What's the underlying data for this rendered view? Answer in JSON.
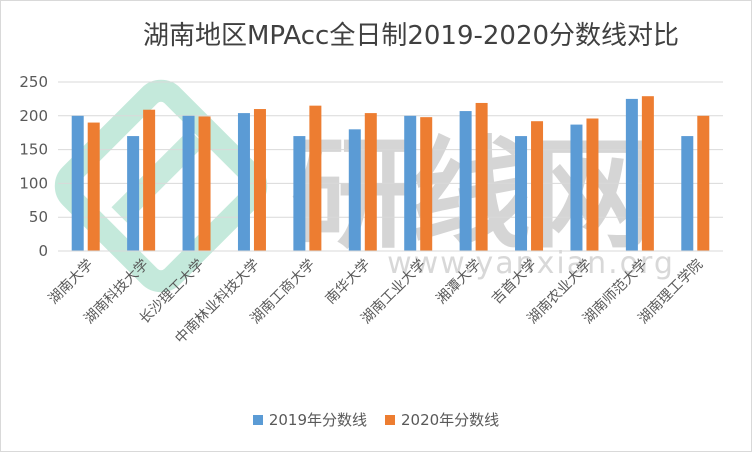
{
  "chart_data": {
    "type": "bar",
    "title": "湖南地区MPAcc全日制2019-2020分数线对比",
    "categories": [
      "湖南大学",
      "湖南科技大学",
      "长沙理工大学",
      "中南林业科技大学",
      "湖南工商大学",
      "南华大学",
      "湖南工业大学",
      "湘潭大学",
      "吉首大学",
      "湖南农业大学",
      "湖南师范大学",
      "湖南理工学院"
    ],
    "series": [
      {
        "name": "2019年分数线",
        "color": "#5B9BD5",
        "values": [
          200,
          170,
          200,
          204,
          170,
          180,
          200,
          207,
          170,
          187,
          225,
          170
        ]
      },
      {
        "name": "2020年分数线",
        "color": "#ED7D31",
        "values": [
          190,
          209,
          199,
          210,
          215,
          204,
          198,
          219,
          192,
          196,
          229,
          200
        ]
      }
    ],
    "ylim": [
      0,
      250
    ],
    "yticks": [
      0,
      50,
      100,
      150,
      200,
      250
    ],
    "grid": true,
    "legend_position": "bottom",
    "watermark": "研线网 www.yanxian.org"
  }
}
